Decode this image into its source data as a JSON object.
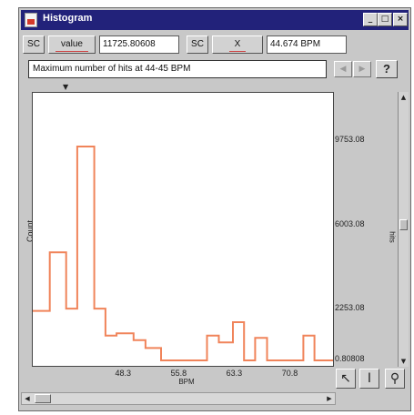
{
  "window": {
    "title": "Histogram",
    "minimize_glyph": "_",
    "maximize_glyph": "□",
    "close_glyph": "×"
  },
  "toolbar": {
    "sc1_label": "SC",
    "value_label": "value",
    "value_field": "11725.80608",
    "sc2_label": "SC",
    "x_label": "X",
    "x_field": "44.674 BPM"
  },
  "message": {
    "text": "Maximum number of hits at 44-45 BPM",
    "prev_glyph": "◀",
    "next_glyph": "▶",
    "help_label": "?"
  },
  "plot": {
    "ylabel": "Count",
    "xlabel": "BPM",
    "right_label": "hits",
    "line_color": "#f0845a",
    "caret_glyph": "▼"
  },
  "chart_data": {
    "type": "line",
    "step": true,
    "x": [
      36.0,
      38.5,
      41.0,
      43.5,
      46.0,
      48.5,
      51.0,
      53.5,
      56.0,
      58.5,
      61.0,
      63.5,
      66.0,
      68.5,
      71.0,
      73.5
    ],
    "y": [
      2200,
      4800,
      2300,
      9500,
      2300,
      1400,
      1100,
      550,
      0,
      0,
      1100,
      800,
      1700,
      550,
      0,
      0
    ],
    "segments": [
      {
        "x0": 36.0,
        "x1": 38.3,
        "y": 2200
      },
      {
        "x0": 38.3,
        "x1": 40.5,
        "y": 4800
      },
      {
        "x0": 40.5,
        "x1": 42.0,
        "y": 2300
      },
      {
        "x0": 42.0,
        "x1": 44.3,
        "y": 9500
      },
      {
        "x0": 44.3,
        "x1": 45.8,
        "y": 2300
      },
      {
        "x0": 45.8,
        "x1": 47.3,
        "y": 1100
      },
      {
        "x0": 47.3,
        "x1": 49.6,
        "y": 1200
      },
      {
        "x0": 49.6,
        "x1": 51.2,
        "y": 900
      },
      {
        "x0": 51.2,
        "x1": 53.3,
        "y": 550
      },
      {
        "x0": 53.3,
        "x1": 59.5,
        "y": 0
      },
      {
        "x0": 59.5,
        "x1": 61.1,
        "y": 1100
      },
      {
        "x0": 61.1,
        "x1": 63.0,
        "y": 800
      },
      {
        "x0": 63.0,
        "x1": 64.5,
        "y": 1700
      },
      {
        "x0": 64.5,
        "x1": 66.0,
        "y": 0
      },
      {
        "x0": 66.0,
        "x1": 67.6,
        "y": 1000
      },
      {
        "x0": 67.6,
        "x1": 72.5,
        "y": 0
      },
      {
        "x0": 72.5,
        "x1": 74.0,
        "y": 1100
      },
      {
        "x0": 74.0,
        "x1": 76.5,
        "y": 0
      }
    ],
    "xlim": [
      36.0,
      76.5
    ],
    "ylim": [
      0,
      11725.8
    ],
    "xticks": [
      {
        "value": 48.3,
        "label": "48.3"
      },
      {
        "value": 55.8,
        "label": "55.8"
      },
      {
        "value": 63.3,
        "label": "63.3"
      },
      {
        "value": 70.8,
        "label": "70.8"
      }
    ],
    "yticks": [
      {
        "value": 9753.08,
        "label": "9753.08"
      },
      {
        "value": 6003.08,
        "label": "6003.08"
      },
      {
        "value": 2253.08,
        "label": "2253.08"
      },
      {
        "value": 0.80808,
        "label": "0.80808"
      }
    ],
    "xlabel": "BPM",
    "ylabel": "Count",
    "grid": false
  }
}
